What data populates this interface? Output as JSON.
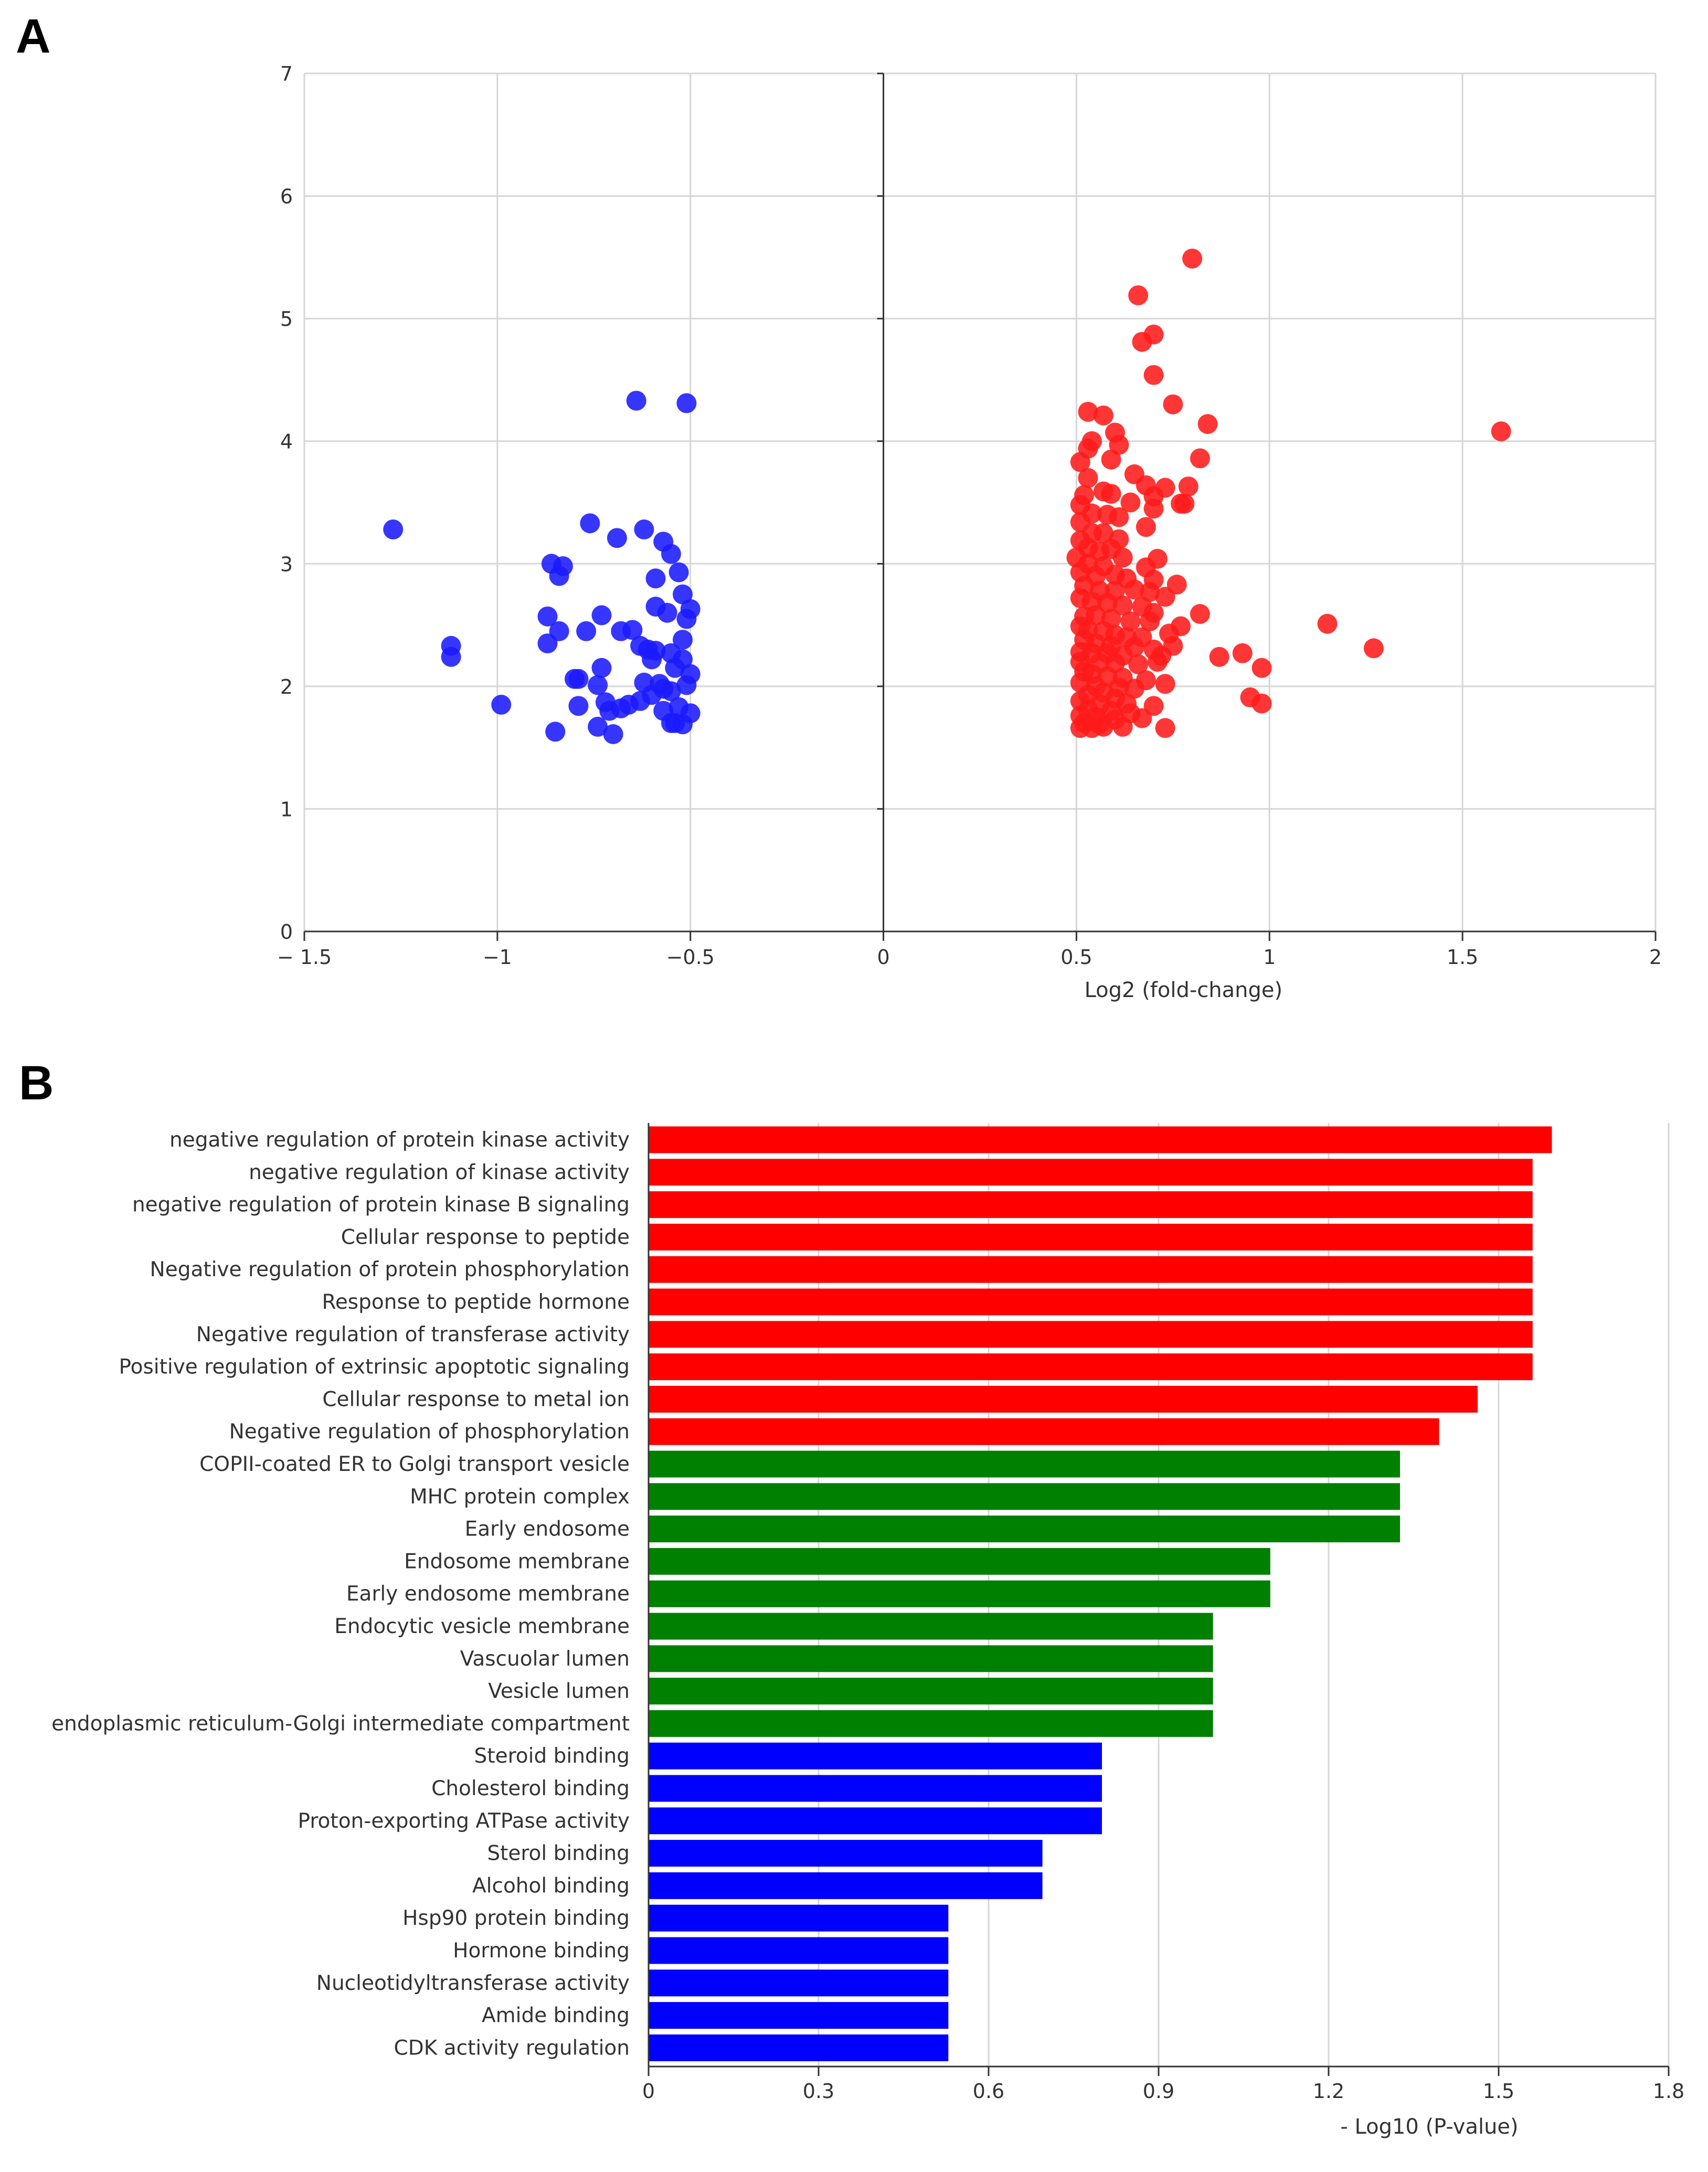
{
  "panelA": {
    "letter": "A",
    "chart_data": {
      "type": "scatter",
      "xlabel": "Log2 (fold-change)",
      "ylabel": "",
      "xlim": [
        -1.5,
        2
      ],
      "ylim": [
        0,
        7
      ],
      "x_ticks": [
        "− 1.5",
        "−1",
        "−0.5",
        "0",
        "0.5",
        "1",
        "1.5",
        "2"
      ],
      "x_tick_values": [
        -1.5,
        -1,
        -0.5,
        0,
        0.5,
        1,
        1.5,
        2
      ],
      "y_ticks": [
        "0",
        "1",
        "2",
        "3",
        "4",
        "5",
        "6",
        "7"
      ],
      "y_tick_values": [
        0,
        1,
        2,
        3,
        4,
        5,
        6,
        7
      ],
      "grid": true,
      "series": [
        {
          "color": "#1a1aff",
          "points": [
            [
              -1.27,
              3.28
            ],
            [
              -0.64,
              4.33
            ],
            [
              -0.51,
              4.31
            ],
            [
              -1.12,
              2.33
            ],
            [
              -1.12,
              2.24
            ],
            [
              -0.99,
              1.85
            ],
            [
              -0.76,
              3.33
            ],
            [
              -0.69,
              3.21
            ],
            [
              -0.62,
              3.28
            ],
            [
              -0.57,
              3.18
            ],
            [
              -0.55,
              3.08
            ],
            [
              -0.53,
              2.93
            ],
            [
              -0.86,
              3.0
            ],
            [
              -0.83,
              2.98
            ],
            [
              -0.84,
              2.9
            ],
            [
              -0.59,
              2.88
            ],
            [
              -0.52,
              2.75
            ],
            [
              -0.5,
              2.63
            ],
            [
              -0.59,
              2.65
            ],
            [
              -0.56,
              2.6
            ],
            [
              -0.51,
              2.55
            ],
            [
              -0.87,
              2.57
            ],
            [
              -0.73,
              2.58
            ],
            [
              -0.68,
              2.45
            ],
            [
              -0.65,
              2.46
            ],
            [
              -0.77,
              2.45
            ],
            [
              -0.84,
              2.45
            ],
            [
              -0.87,
              2.35
            ],
            [
              -0.63,
              2.33
            ],
            [
              -0.61,
              2.3
            ],
            [
              -0.59,
              2.29
            ],
            [
              -0.55,
              2.27
            ],
            [
              -0.52,
              2.38
            ],
            [
              -0.6,
              2.22
            ],
            [
              -0.52,
              2.22
            ],
            [
              -0.54,
              2.15
            ],
            [
              -0.73,
              2.15
            ],
            [
              -0.8,
              2.06
            ],
            [
              -0.79,
              2.06
            ],
            [
              -0.74,
              2.01
            ],
            [
              -0.62,
              2.03
            ],
            [
              -0.58,
              2.02
            ],
            [
              -0.51,
              2.01
            ],
            [
              -0.5,
              2.1
            ],
            [
              -0.57,
              1.98
            ],
            [
              -0.55,
              1.96
            ],
            [
              -0.6,
              1.93
            ],
            [
              -0.63,
              1.88
            ],
            [
              -0.66,
              1.85
            ],
            [
              -0.68,
              1.82
            ],
            [
              -0.72,
              1.87
            ],
            [
              -0.79,
              1.84
            ],
            [
              -0.71,
              1.8
            ],
            [
              -0.57,
              1.8
            ],
            [
              -0.53,
              1.83
            ],
            [
              -0.5,
              1.78
            ],
            [
              -0.54,
              1.7
            ],
            [
              -0.55,
              1.7
            ],
            [
              -0.52,
              1.69
            ],
            [
              -0.74,
              1.67
            ],
            [
              -0.85,
              1.63
            ],
            [
              -0.7,
              1.61
            ]
          ]
        },
        {
          "color": "#ff1a1a",
          "points": [
            [
              0.8,
              5.49
            ],
            [
              0.66,
              5.19
            ],
            [
              0.7,
              4.87
            ],
            [
              0.67,
              4.81
            ],
            [
              0.7,
              4.54
            ],
            [
              0.75,
              4.3
            ],
            [
              0.53,
              4.24
            ],
            [
              0.57,
              4.21
            ],
            [
              0.84,
              4.14
            ],
            [
              1.6,
              4.08
            ],
            [
              0.6,
              4.07
            ],
            [
              0.54,
              4.0
            ],
            [
              0.53,
              3.94
            ],
            [
              0.61,
              3.97
            ],
            [
              0.82,
              3.86
            ],
            [
              0.51,
              3.83
            ],
            [
              0.59,
              3.85
            ],
            [
              0.65,
              3.73
            ],
            [
              0.53,
              3.7
            ],
            [
              0.68,
              3.64
            ],
            [
              0.73,
              3.62
            ],
            [
              0.79,
              3.63
            ],
            [
              0.52,
              3.56
            ],
            [
              0.57,
              3.59
            ],
            [
              0.59,
              3.57
            ],
            [
              0.7,
              3.55
            ],
            [
              0.64,
              3.5
            ],
            [
              0.77,
              3.49
            ],
            [
              0.78,
              3.49
            ],
            [
              0.51,
              3.48
            ],
            [
              0.54,
              3.41
            ],
            [
              0.58,
              3.4
            ],
            [
              0.61,
              3.38
            ],
            [
              0.7,
              3.45
            ],
            [
              0.68,
              3.3
            ],
            [
              0.51,
              3.34
            ],
            [
              0.54,
              3.25
            ],
            [
              0.57,
              3.25
            ],
            [
              0.61,
              3.2
            ],
            [
              0.51,
              3.19
            ],
            [
              0.53,
              3.13
            ],
            [
              0.56,
              3.1
            ],
            [
              0.59,
              3.12
            ],
            [
              0.62,
              3.05
            ],
            [
              0.71,
              3.04
            ],
            [
              0.5,
              3.05
            ],
            [
              0.53,
              3.0
            ],
            [
              0.57,
              2.98
            ],
            [
              0.68,
              2.97
            ],
            [
              0.51,
              2.93
            ],
            [
              0.55,
              2.9
            ],
            [
              0.6,
              2.91
            ],
            [
              0.63,
              2.88
            ],
            [
              0.7,
              2.87
            ],
            [
              0.76,
              2.83
            ],
            [
              0.52,
              2.82
            ],
            [
              0.56,
              2.78
            ],
            [
              0.6,
              2.78
            ],
            [
              0.65,
              2.79
            ],
            [
              0.69,
              2.77
            ],
            [
              0.73,
              2.73
            ],
            [
              0.51,
              2.72
            ],
            [
              0.54,
              2.69
            ],
            [
              0.58,
              2.68
            ],
            [
              0.62,
              2.66
            ],
            [
              0.67,
              2.65
            ],
            [
              0.7,
              2.6
            ],
            [
              0.82,
              2.59
            ],
            [
              0.52,
              2.57
            ],
            [
              0.55,
              2.58
            ],
            [
              0.59,
              2.55
            ],
            [
              0.64,
              2.53
            ],
            [
              0.69,
              2.53
            ],
            [
              0.77,
              2.49
            ],
            [
              1.15,
              2.51
            ],
            [
              0.51,
              2.49
            ],
            [
              0.53,
              2.46
            ],
            [
              0.57,
              2.45
            ],
            [
              0.6,
              2.42
            ],
            [
              0.63,
              2.4
            ],
            [
              0.67,
              2.4
            ],
            [
              0.74,
              2.43
            ],
            [
              0.52,
              2.38
            ],
            [
              0.55,
              2.35
            ],
            [
              0.59,
              2.33
            ],
            [
              0.65,
              2.32
            ],
            [
              0.7,
              2.3
            ],
            [
              0.75,
              2.33
            ],
            [
              1.27,
              2.31
            ],
            [
              0.51,
              2.28
            ],
            [
              0.54,
              2.27
            ],
            [
              0.58,
              2.27
            ],
            [
              0.62,
              2.25
            ],
            [
              0.72,
              2.25
            ],
            [
              0.93,
              2.27
            ],
            [
              0.87,
              2.24
            ],
            [
              0.51,
              2.2
            ],
            [
              0.56,
              2.19
            ],
            [
              0.6,
              2.19
            ],
            [
              0.66,
              2.18
            ],
            [
              0.71,
              2.2
            ],
            [
              0.98,
              2.15
            ],
            [
              0.52,
              2.12
            ],
            [
              0.54,
              2.1
            ],
            [
              0.58,
              2.08
            ],
            [
              0.62,
              2.07
            ],
            [
              0.68,
              2.05
            ],
            [
              0.73,
              2.02
            ],
            [
              0.51,
              2.03
            ],
            [
              0.55,
              2.0
            ],
            [
              0.61,
              1.99
            ],
            [
              0.65,
              1.98
            ],
            [
              0.57,
              1.95
            ],
            [
              0.53,
              1.93
            ],
            [
              0.6,
              1.9
            ],
            [
              0.95,
              1.91
            ],
            [
              0.98,
              1.86
            ],
            [
              0.51,
              1.88
            ],
            [
              0.56,
              1.85
            ],
            [
              0.63,
              1.86
            ],
            [
              0.7,
              1.84
            ],
            [
              0.53,
              1.81
            ],
            [
              0.59,
              1.8
            ],
            [
              0.64,
              1.78
            ],
            [
              0.51,
              1.76
            ],
            [
              0.55,
              1.75
            ],
            [
              0.6,
              1.73
            ],
            [
              0.67,
              1.74
            ],
            [
              0.52,
              1.7
            ],
            [
              0.56,
              1.69
            ],
            [
              0.62,
              1.67
            ],
            [
              0.51,
              1.66
            ],
            [
              0.54,
              1.66
            ],
            [
              0.57,
              1.67
            ],
            [
              0.73,
              1.66
            ]
          ]
        }
      ]
    }
  },
  "panelB": {
    "letter": "B",
    "chart_data": {
      "type": "bar",
      "orientation": "horizontal",
      "xlabel": "- Log10 (P-value)",
      "xlim": [
        0,
        1.8
      ],
      "x_ticks": [
        "0",
        "0.3",
        "0.6",
        "0.9",
        "1.2",
        "1.5",
        "1.8"
      ],
      "x_tick_values": [
        0,
        0.3,
        0.6,
        0.9,
        1.2,
        1.5,
        1.8
      ],
      "grid": true,
      "categories": [
        "negative regulation of protein kinase activity",
        "negative regulation of kinase activity",
        "negative regulation of protein kinase B signaling",
        "Cellular response to peptide",
        "Negative regulation of protein phosphorylation",
        "Response to peptide hormone",
        "Negative regulation of transferase activity",
        "Positive regulation of extrinsic apoptotic signaling",
        "Cellular response to metal ion",
        "Negative regulation of phosphorylation",
        "COPII-coated ER to Golgi transport vesicle",
        "MHC protein complex",
        "Early endosome",
        "Endosome membrane",
        "Early endosome membrane",
        "Endocytic vesicle membrane",
        "Vascuolar lumen",
        "Vesicle lumen",
        "endoplasmic reticulum-Golgi intermediate compartment",
        "Steroid binding",
        "Cholesterol binding",
        "Proton-exporting ATPase activity",
        "Sterol binding",
        "Alcohol binding",
        "Hsp90 protein binding",
        "Hormone binding",
        "Nucleotidyltransferase activity",
        "Amide binding",
        "CDK activity regulation"
      ],
      "values": [
        1.594,
        1.56,
        1.56,
        1.56,
        1.56,
        1.56,
        1.56,
        1.56,
        1.463,
        1.395,
        1.326,
        1.326,
        1.326,
        1.097,
        1.097,
        0.996,
        0.996,
        0.996,
        0.996,
        0.8,
        0.8,
        0.8,
        0.695,
        0.695,
        0.529,
        0.529,
        0.529,
        0.529,
        0.529
      ],
      "colors": [
        "#ff0000",
        "#ff0000",
        "#ff0000",
        "#ff0000",
        "#ff0000",
        "#ff0000",
        "#ff0000",
        "#ff0000",
        "#ff0000",
        "#ff0000",
        "#008000",
        "#008000",
        "#008000",
        "#008000",
        "#008000",
        "#008000",
        "#008000",
        "#008000",
        "#008000",
        "#0000ff",
        "#0000ff",
        "#0000ff",
        "#0000ff",
        "#0000ff",
        "#0000ff",
        "#0000ff",
        "#0000ff",
        "#0000ff",
        "#0000ff"
      ]
    }
  }
}
